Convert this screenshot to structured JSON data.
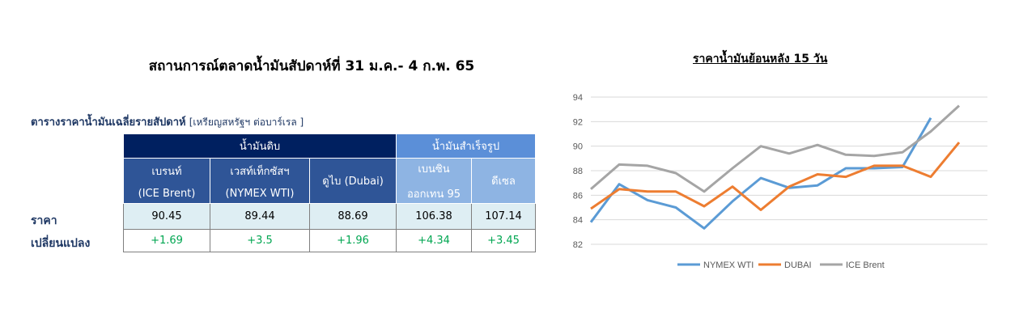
{
  "main_title": "สถานการณ์ตลาดน้ำมันสัปดาห์ที่ 31 ม.ค.- 4 ก.พ. 65",
  "table_caption": {
    "bold": "ตารางราคาน้ำมันเฉลี่ยรายสัปดาห์",
    "unit": "[เหรียญสหรัฐฯ ต่อบาร์เรล ]"
  },
  "table": {
    "group_crude": "น้ำมันดิบ",
    "group_refined": "น้ำมันสำเร็จรูป",
    "columns": [
      {
        "line1": "เบรนท์",
        "line2": "(ICE Brent)",
        "price": "90.45",
        "change": "+1.69"
      },
      {
        "line1": "เวสท์เท็กซัสฯ",
        "line2": "(NYMEX WTI)",
        "price": "89.44",
        "change": "+3.5"
      },
      {
        "line1": "ดูไบ (Dubai)",
        "line2": "",
        "price": "88.69",
        "change": "+1.96"
      },
      {
        "line1": "เบนซิน",
        "line2": "ออกเทน  95",
        "price": "106.38",
        "change": "+4.34"
      },
      {
        "line1": "ดีเซล",
        "line2": "",
        "price": "107.14",
        "change": "+3.45"
      }
    ],
    "row_price_label": "ราคา",
    "row_change_label": "เปลี่ยนแปลง",
    "colors": {
      "header_dark": "#002060",
      "header_mid": "#2f5597",
      "header_refined": "#5b8fd8",
      "subheader_refined": "#8eb4e3",
      "value_bg": "#deeef3",
      "change_text": "#00a651"
    }
  },
  "chart_data": {
    "type": "line",
    "title": "ราคาน้ำมันย้อนหลัง 15 วัน",
    "xlabel": "",
    "ylabel": "",
    "ylim": [
      82,
      94
    ],
    "yticks": [
      "82",
      "84",
      "86",
      "88",
      "90",
      "92",
      "94"
    ],
    "grid": true,
    "legend": "bottom",
    "x": [
      1,
      2,
      3,
      4,
      5,
      6,
      7,
      8,
      9,
      10,
      11,
      12,
      13,
      14,
      15
    ],
    "series": [
      {
        "name": "NYMEX WTI",
        "color": "#5b9bd5",
        "values": [
          83.8,
          86.9,
          85.6,
          85.0,
          83.3,
          85.5,
          87.4,
          86.6,
          86.8,
          88.2,
          88.2,
          88.3,
          92.3,
          null,
          null
        ]
      },
      {
        "name": "DUBAI",
        "color": "#ed7d31",
        "values": [
          84.9,
          86.5,
          86.3,
          86.3,
          85.1,
          86.7,
          84.8,
          86.7,
          87.7,
          87.5,
          88.4,
          88.4,
          87.5,
          90.3,
          null
        ]
      },
      {
        "name": "ICE Brent",
        "color": "#a5a5a5",
        "values": [
          86.5,
          88.5,
          88.4,
          87.8,
          86.3,
          88.2,
          90.0,
          89.4,
          90.1,
          89.3,
          89.2,
          89.5,
          91.2,
          93.3,
          null
        ]
      }
    ]
  }
}
